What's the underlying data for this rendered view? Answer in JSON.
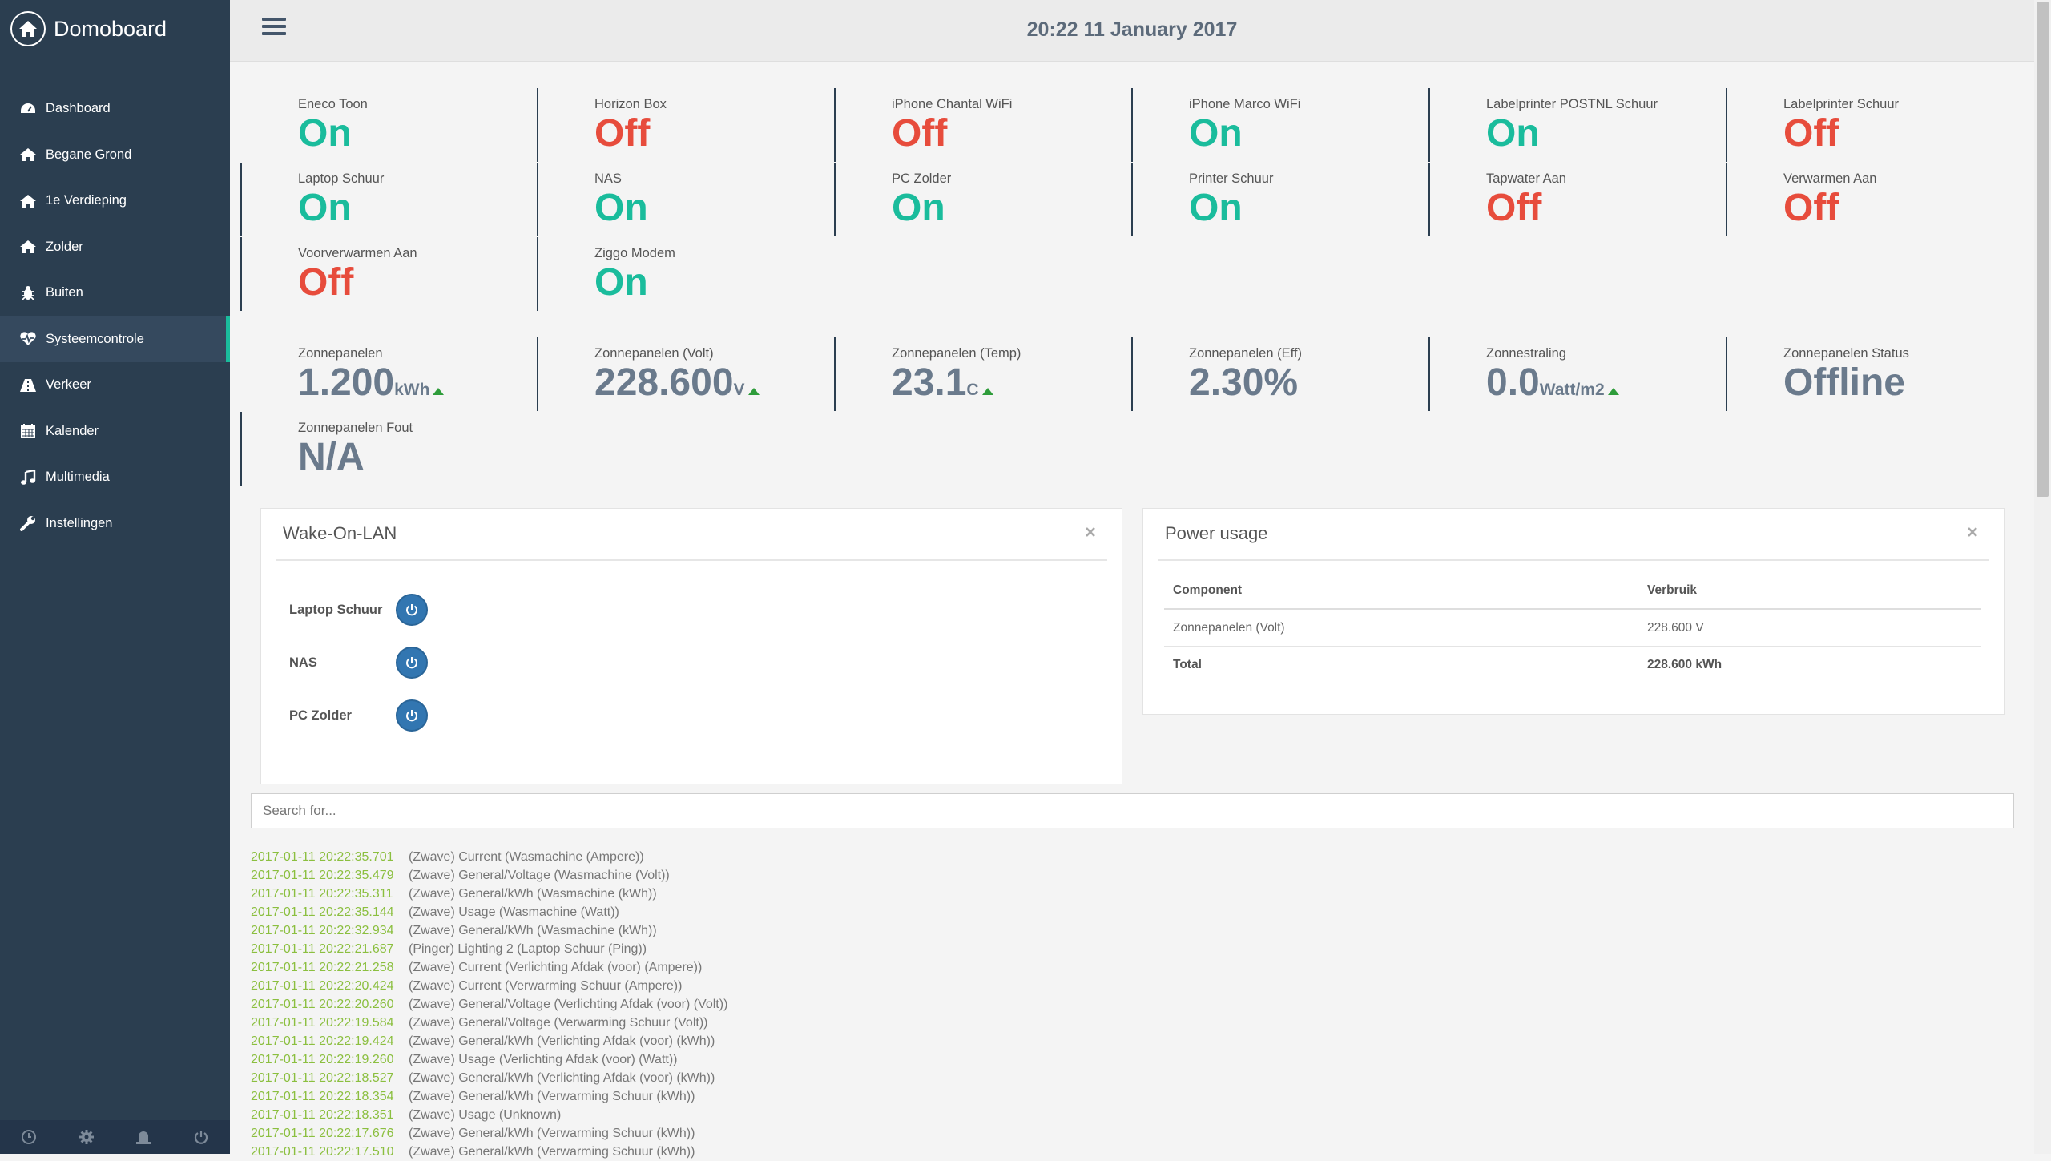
{
  "app": {
    "name": "Domoboard"
  },
  "header": {
    "datetime": "20:22 11 January 2017"
  },
  "nav": {
    "items": [
      {
        "label": "Dashboard",
        "icon": "tachometer-icon"
      },
      {
        "label": "Begane Grond",
        "icon": "home-icon"
      },
      {
        "label": "1e Verdieping",
        "icon": "home-icon"
      },
      {
        "label": "Zolder",
        "icon": "home-icon"
      },
      {
        "label": "Buiten",
        "icon": "bug-icon"
      },
      {
        "label": "Systeemcontrole",
        "icon": "heartbeat-icon",
        "active": true
      },
      {
        "label": "Verkeer",
        "icon": "road-icon"
      },
      {
        "label": "Kalender",
        "icon": "calendar-icon"
      },
      {
        "label": "Multimedia",
        "icon": "music-icon"
      },
      {
        "label": "Instellingen",
        "icon": "wrench-icon"
      }
    ],
    "footer_icons": [
      "clock-icon",
      "gear-icon",
      "alert-icon",
      "power-icon"
    ]
  },
  "switches": [
    {
      "label": "Eneco Toon",
      "value": "On"
    },
    {
      "label": "Horizon Box",
      "value": "Off"
    },
    {
      "label": "iPhone Chantal WiFi",
      "value": "Off"
    },
    {
      "label": "iPhone Marco WiFi",
      "value": "On"
    },
    {
      "label": "Labelprinter POSTNL Schuur",
      "value": "On"
    },
    {
      "label": "Labelprinter Schuur",
      "value": "Off"
    },
    {
      "label": "Laptop Schuur",
      "value": "On"
    },
    {
      "label": "NAS",
      "value": "On"
    },
    {
      "label": "PC Zolder",
      "value": "On"
    },
    {
      "label": "Printer Schuur",
      "value": "On"
    },
    {
      "label": "Tapwater Aan",
      "value": "Off"
    },
    {
      "label": "Verwarmen Aan",
      "value": "Off"
    },
    {
      "label": "Voorverwarmen Aan",
      "value": "Off"
    },
    {
      "label": "Ziggo Modem",
      "value": "On"
    }
  ],
  "sensors": [
    {
      "label": "Zonnepanelen",
      "value": "1.200",
      "unit": "kWh",
      "trend": "up"
    },
    {
      "label": "Zonnepanelen (Volt)",
      "value": "228.600",
      "unit": "V",
      "trend": "up"
    },
    {
      "label": "Zonnepanelen (Temp)",
      "value": "23.1",
      "unit": "C",
      "trend": "up"
    },
    {
      "label": "Zonnepanelen (Eff)",
      "value": "2.30%",
      "unit": "",
      "trend": ""
    },
    {
      "label": "Zonnestraling",
      "value": "0.0",
      "unit": "Watt/m2",
      "trend": "up"
    },
    {
      "label": "Zonnepanelen Status",
      "value": "Offline",
      "unit": "",
      "trend": ""
    },
    {
      "label": "Zonnepanelen Fout",
      "value": "N/A",
      "unit": "",
      "trend": ""
    }
  ],
  "wol": {
    "title": "Wake-On-LAN",
    "devices": [
      "Laptop Schuur",
      "NAS",
      "PC Zolder"
    ]
  },
  "power": {
    "title": "Power usage",
    "col_component": "Component",
    "col_usage": "Verbruik",
    "rows": [
      {
        "component": "Zonnepanelen (Volt)",
        "usage": "228.600 V"
      }
    ],
    "total_label": "Total",
    "total_value": "228.600 kWh"
  },
  "search": {
    "placeholder": "Search for..."
  },
  "log": [
    {
      "ts": "2017-01-11 20:22:35.701",
      "msg": "(Zwave) Current (Wasmachine (Ampere))"
    },
    {
      "ts": "2017-01-11 20:22:35.479",
      "msg": "(Zwave) General/Voltage (Wasmachine (Volt))"
    },
    {
      "ts": "2017-01-11 20:22:35.311",
      "msg": "(Zwave) General/kWh (Wasmachine (kWh))"
    },
    {
      "ts": "2017-01-11 20:22:35.144",
      "msg": "(Zwave) Usage (Wasmachine (Watt))"
    },
    {
      "ts": "2017-01-11 20:22:32.934",
      "msg": "(Zwave) General/kWh (Wasmachine (kWh))"
    },
    {
      "ts": "2017-01-11 20:22:21.687",
      "msg": "(Pinger) Lighting 2 (Laptop Schuur (Ping))"
    },
    {
      "ts": "2017-01-11 20:22:21.258",
      "msg": "(Zwave) Current (Verlichting Afdak (voor) (Ampere))"
    },
    {
      "ts": "2017-01-11 20:22:20.424",
      "msg": "(Zwave) Current (Verwarming Schuur (Ampere))"
    },
    {
      "ts": "2017-01-11 20:22:20.260",
      "msg": "(Zwave) General/Voltage (Verlichting Afdak (voor) (Volt))"
    },
    {
      "ts": "2017-01-11 20:22:19.584",
      "msg": "(Zwave) General/Voltage (Verwarming Schuur (Volt))"
    },
    {
      "ts": "2017-01-11 20:22:19.424",
      "msg": "(Zwave) General/kWh (Verlichting Afdak (voor) (kWh))"
    },
    {
      "ts": "2017-01-11 20:22:19.260",
      "msg": "(Zwave) Usage (Verlichting Afdak (voor) (Watt))"
    },
    {
      "ts": "2017-01-11 20:22:18.527",
      "msg": "(Zwave) General/kWh (Verlichting Afdak (voor) (kWh))"
    },
    {
      "ts": "2017-01-11 20:22:18.354",
      "msg": "(Zwave) General/kWh (Verwarming Schuur (kWh))"
    },
    {
      "ts": "2017-01-11 20:22:18.351",
      "msg": "(Zwave) Usage (Unknown)"
    },
    {
      "ts": "2017-01-11 20:22:17.676",
      "msg": "(Zwave) General/kWh (Verwarming Schuur (kWh))"
    },
    {
      "ts": "2017-01-11 20:22:17.510",
      "msg": "(Zwave) General/kWh (Verwarming Schuur (kWh))"
    }
  ],
  "colors": {
    "sidebar": "#2b3e50",
    "on": "#1abc9c",
    "off": "#e74c3c",
    "accent": "#3276b1",
    "log_ts": "#8bbf3f"
  }
}
